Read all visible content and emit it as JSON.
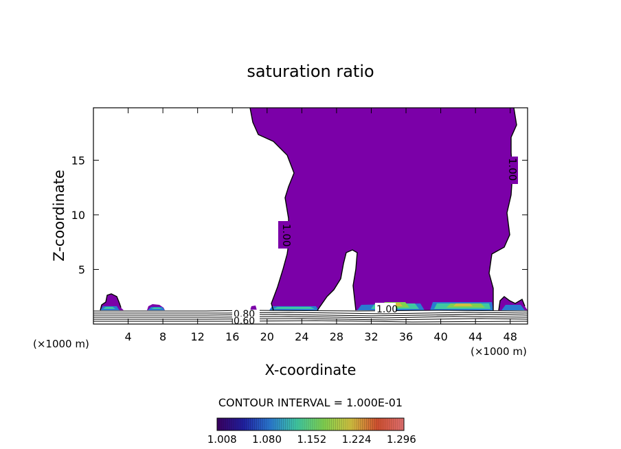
{
  "chart_data": {
    "type": "contour",
    "title": "saturation ratio",
    "xlabel": "X-coordinate",
    "ylabel": "Z-coordinate",
    "x_unit_label": "(×1000 m)",
    "x_unit_label_right": "(×1000 m)",
    "xlim": [
      0,
      50
    ],
    "ylim": [
      0,
      19.8
    ],
    "x_ticks": [
      4,
      8,
      12,
      16,
      20,
      24,
      28,
      32,
      36,
      40,
      44,
      48
    ],
    "x_tick_labels": [
      "4",
      "8",
      "12",
      "16",
      "20",
      "24",
      "28",
      "32",
      "36",
      "40",
      "44",
      "48"
    ],
    "y_ticks": [
      5,
      10,
      15
    ],
    "y_tick_labels": [
      "5",
      "10",
      "15"
    ],
    "fill_color": "#7b00a8",
    "saturated_region_level": 1.0,
    "contour_labels": [
      {
        "text": "1.00",
        "x": 22.6,
        "z": 8.2
      },
      {
        "text": "1.00",
        "x": 48.3,
        "z": 15.2
      },
      {
        "text": "1.00",
        "x": 33.8,
        "z": 1.2
      },
      {
        "text": "0.80",
        "x": 17.2,
        "z": 0.95
      },
      {
        "text": "0.60",
        "x": 17.2,
        "z": 0.3
      }
    ],
    "contour_interval_text": "CONTOUR INTERVAL = 1.000E-01",
    "colorbar": {
      "tick_labels": [
        "1.008",
        "1.080",
        "1.152",
        "1.224",
        "1.296"
      ],
      "values": [
        1.008,
        1.08,
        1.152,
        1.224,
        1.296
      ],
      "range": [
        1.0,
        1.3
      ],
      "colors": [
        "#3a0060",
        "#2020a0",
        "#2a7ad0",
        "#40c8a0",
        "#80d050",
        "#d0c040",
        "#d05030",
        "#e07070"
      ]
    }
  }
}
